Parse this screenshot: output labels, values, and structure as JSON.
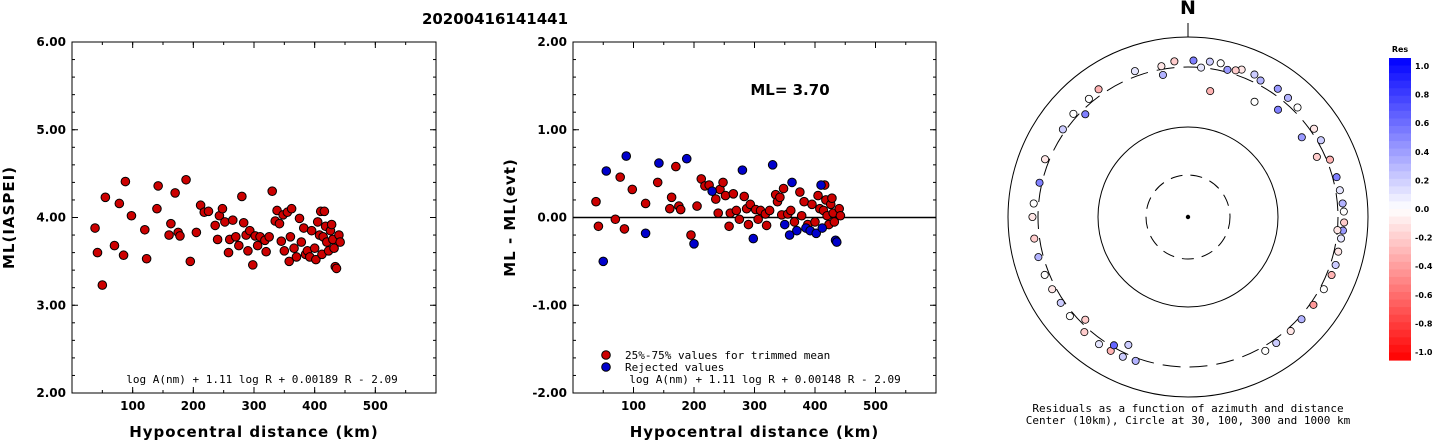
{
  "title": "20200416141441",
  "colors": {
    "accepted": "#cc0000",
    "rejected": "#0000cc",
    "positive_residual": "#0000ff",
    "negative_residual": "#ff0000"
  },
  "chart_data": [
    {
      "type": "scatter",
      "id": "left",
      "xlabel": "Hypocentral distance (km)",
      "ylabel": "ML(IASPEI)",
      "xlim": [
        0,
        600
      ],
      "ylim": [
        2.0,
        6.0
      ],
      "xticks": [
        100,
        200,
        300,
        400,
        500
      ],
      "yticks": [
        "2.00",
        "3.00",
        "4.00",
        "5.00",
        "6.00"
      ],
      "formula": "log A(nm) + 1.11 log R + 0.00189 R - 2.09",
      "series": [
        {
          "points": [
            [
              38,
              3.88
            ],
            [
              42,
              3.6
            ],
            [
              50,
              3.23
            ],
            [
              55,
              4.23
            ],
            [
              70,
              3.68
            ],
            [
              78,
              4.16
            ],
            [
              85,
              3.57
            ],
            [
              88,
              4.41
            ],
            [
              98,
              4.02
            ],
            [
              120,
              3.86
            ],
            [
              123,
              3.53
            ],
            [
              140,
              4.1
            ],
            [
              142,
              4.36
            ],
            [
              160,
              3.8
            ],
            [
              163,
              3.93
            ],
            [
              170,
              4.28
            ],
            [
              175,
              3.83
            ],
            [
              178,
              3.79
            ],
            [
              188,
              4.43
            ],
            [
              195,
              3.5
            ],
            [
              205,
              3.83
            ],
            [
              212,
              4.14
            ],
            [
              218,
              4.06
            ],
            [
              225,
              4.07
            ],
            [
              236,
              3.91
            ],
            [
              240,
              3.75
            ],
            [
              243,
              4.02
            ],
            [
              248,
              4.1
            ],
            [
              252,
              3.95
            ],
            [
              258,
              3.6
            ],
            [
              260,
              3.75
            ],
            [
              265,
              3.97
            ],
            [
              270,
              3.78
            ],
            [
              275,
              3.68
            ],
            [
              280,
              4.24
            ],
            [
              283,
              3.94
            ],
            [
              287,
              3.8
            ],
            [
              290,
              3.62
            ],
            [
              293,
              3.85
            ],
            [
              298,
              3.46
            ],
            [
              302,
              3.79
            ],
            [
              306,
              3.68
            ],
            [
              310,
              3.78
            ],
            [
              318,
              3.74
            ],
            [
              320,
              3.61
            ],
            [
              325,
              3.78
            ],
            [
              330,
              4.3
            ],
            [
              335,
              3.96
            ],
            [
              338,
              4.08
            ],
            [
              342,
              3.93
            ],
            [
              345,
              3.73
            ],
            [
              348,
              4.03
            ],
            [
              350,
              3.62
            ],
            [
              355,
              4.06
            ],
            [
              358,
              3.5
            ],
            [
              360,
              3.78
            ],
            [
              362,
              4.1
            ],
            [
              366,
              3.65
            ],
            [
              370,
              3.55
            ],
            [
              375,
              3.99
            ],
            [
              378,
              3.72
            ],
            [
              382,
              3.88
            ],
            [
              385,
              3.58
            ],
            [
              388,
              3.62
            ],
            [
              392,
              3.55
            ],
            [
              395,
              3.85
            ],
            [
              400,
              3.65
            ],
            [
              402,
              3.52
            ],
            [
              405,
              3.95
            ],
            [
              408,
              3.8
            ],
            [
              410,
              4.07
            ],
            [
              412,
              3.58
            ],
            [
              414,
              3.78
            ],
            [
              416,
              4.07
            ],
            [
              418,
              3.9
            ],
            [
              420,
              3.72
            ],
            [
              423,
              3.62
            ],
            [
              426,
              3.85
            ],
            [
              428,
              3.92
            ],
            [
              430,
              3.75
            ],
            [
              432,
              3.65
            ],
            [
              434,
              3.44
            ],
            [
              436,
              3.42
            ],
            [
              440,
              3.8
            ],
            [
              442,
              3.72
            ]
          ]
        }
      ]
    },
    {
      "type": "scatter",
      "id": "middle",
      "xlabel": "Hypocentral distance (km)",
      "ylabel": "ML - ML(evt)",
      "xlim": [
        0,
        600
      ],
      "ylim": [
        -2.0,
        2.0
      ],
      "xticks": [
        100,
        200,
        300,
        400,
        500
      ],
      "yticks": [
        "-2.00",
        "-1.00",
        "0.00",
        "1.00",
        "2.00"
      ],
      "annotation": "ML= 3.70",
      "formula": "log A(nm) + 1.11 log R + 0.00148 R - 2.09",
      "legend": [
        "25%-75% values for trimmed mean",
        "Rejected values"
      ],
      "series": [
        {
          "name": "25%-75% values for trimmed mean",
          "points": [
            [
              38,
              0.18
            ],
            [
              42,
              -0.1
            ],
            [
              70,
              -0.02
            ],
            [
              78,
              0.46
            ],
            [
              85,
              -0.13
            ],
            [
              98,
              0.32
            ],
            [
              120,
              0.16
            ],
            [
              140,
              0.4
            ],
            [
              160,
              0.1
            ],
            [
              163,
              0.23
            ],
            [
              170,
              0.58
            ],
            [
              175,
              0.13
            ],
            [
              178,
              0.09
            ],
            [
              195,
              -0.2
            ],
            [
              205,
              0.13
            ],
            [
              212,
              0.44
            ],
            [
              218,
              0.36
            ],
            [
              225,
              0.37
            ],
            [
              236,
              0.21
            ],
            [
              240,
              0.05
            ],
            [
              243,
              0.32
            ],
            [
              248,
              0.4
            ],
            [
              252,
              0.25
            ],
            [
              258,
              -0.1
            ],
            [
              260,
              0.05
            ],
            [
              265,
              0.27
            ],
            [
              270,
              0.08
            ],
            [
              275,
              -0.02
            ],
            [
              283,
              0.24
            ],
            [
              287,
              0.1
            ],
            [
              290,
              -0.08
            ],
            [
              293,
              0.15
            ],
            [
              302,
              0.09
            ],
            [
              306,
              -0.02
            ],
            [
              310,
              0.08
            ],
            [
              318,
              0.04
            ],
            [
              320,
              -0.09
            ],
            [
              325,
              0.08
            ],
            [
              335,
              0.26
            ],
            [
              338,
              0.18
            ],
            [
              342,
              0.23
            ],
            [
              345,
              0.03
            ],
            [
              348,
              0.33
            ],
            [
              355,
              0.04
            ],
            [
              360,
              0.08
            ],
            [
              366,
              -0.05
            ],
            [
              375,
              0.29
            ],
            [
              378,
              0.02
            ],
            [
              382,
              0.18
            ],
            [
              388,
              -0.08
            ],
            [
              395,
              0.15
            ],
            [
              400,
              -0.05
            ],
            [
              405,
              0.25
            ],
            [
              408,
              0.1
            ],
            [
              414,
              0.08
            ],
            [
              416,
              0.37
            ],
            [
              418,
              0.2
            ],
            [
              420,
              0.02
            ],
            [
              423,
              -0.08
            ],
            [
              426,
              0.15
            ],
            [
              428,
              0.22
            ],
            [
              430,
              0.05
            ],
            [
              432,
              -0.05
            ],
            [
              440,
              0.1
            ],
            [
              442,
              0.02
            ]
          ]
        },
        {
          "name": "Rejected values",
          "points": [
            [
              50,
              -0.5
            ],
            [
              55,
              0.53
            ],
            [
              88,
              0.7
            ],
            [
              142,
              0.62
            ],
            [
              188,
              0.67
            ],
            [
              280,
              0.54
            ],
            [
              298,
              -0.24
            ],
            [
              330,
              0.6
            ],
            [
              350,
              -0.08
            ],
            [
              358,
              -0.2
            ],
            [
              362,
              0.4
            ],
            [
              370,
              -0.15
            ],
            [
              385,
              -0.12
            ],
            [
              392,
              -0.15
            ],
            [
              402,
              -0.18
            ],
            [
              410,
              0.37
            ],
            [
              412,
              -0.12
            ],
            [
              434,
              -0.26
            ],
            [
              436,
              -0.28
            ],
            [
              200,
              -0.3
            ],
            [
              120,
              -0.18
            ],
            [
              230,
              0.3
            ]
          ]
        }
      ]
    },
    {
      "type": "scatter",
      "id": "azimuth",
      "subtype": "polar",
      "north_label": "N",
      "caption": [
        "Residuals as a function of azimuth and distance",
        "Center (10km), Circle at 30, 100, 300 and 1000 km"
      ],
      "rings_km": [
        30,
        100,
        300,
        1000
      ],
      "colorbar_title": "Res",
      "colorbar_ticks": [
        "1.0",
        "0.8",
        "0.6",
        "0.4",
        "0.2",
        "0.0",
        "-0.2",
        "-0.4",
        "-0.6",
        "-0.8",
        "-1.0"
      ],
      "stations": [
        [
          5,
          300,
          0.1
        ],
        [
          15,
          330,
          0.4
        ],
        [
          28,
          360,
          0.3
        ],
        [
          350,
          340,
          -0.1
        ],
        [
          340,
          370,
          0.1
        ],
        [
          325,
          380,
          -0.3
        ],
        [
          312,
          355,
          0.0
        ],
        [
          355,
          385,
          -0.2
        ],
        [
          2,
          390,
          0.5
        ],
        [
          8,
          395,
          0.2
        ],
        [
          12,
          400,
          0.0
        ],
        [
          20,
          395,
          -0.1
        ],
        [
          25,
          400,
          0.2
        ],
        [
          35,
          390,
          0.4
        ],
        [
          40,
          375,
          0.3
        ],
        [
          45,
          365,
          0.0
        ],
        [
          55,
          350,
          -0.1
        ],
        [
          60,
          345,
          0.2
        ],
        [
          68,
          340,
          -0.3
        ],
        [
          75,
          350,
          0.5
        ],
        [
          80,
          355,
          0.1
        ],
        [
          85,
          370,
          0.3
        ],
        [
          88,
          380,
          0.0
        ],
        [
          92,
          385,
          -0.2
        ],
        [
          95,
          375,
          0.4
        ],
        [
          98,
          360,
          0.1
        ],
        [
          103,
          355,
          -0.1
        ],
        [
          108,
          370,
          0.2
        ],
        [
          112,
          365,
          -0.3
        ],
        [
          118,
          350,
          0.0
        ],
        [
          125,
          340,
          -0.4
        ],
        [
          132,
          335,
          0.3
        ],
        [
          138,
          345,
          -0.1
        ],
        [
          145,
          350,
          0.2
        ],
        [
          150,
          360,
          0.0
        ],
        [
          200,
          340,
          0.3
        ],
        [
          205,
          355,
          0.2
        ],
        [
          210,
          360,
          -0.3
        ],
        [
          215,
          370,
          0.1
        ],
        [
          222,
          365,
          -0.2
        ],
        [
          230,
          355,
          0.0
        ],
        [
          236,
          345,
          0.2
        ],
        [
          242,
          350,
          -0.1
        ],
        [
          248,
          360,
          0.0
        ],
        [
          255,
          365,
          0.3
        ],
        [
          262,
          370,
          -0.2
        ],
        [
          270,
          375,
          -0.1
        ],
        [
          275,
          365,
          0.0
        ],
        [
          283,
          330,
          0.5
        ],
        [
          292,
          355,
          -0.1
        ],
        [
          305,
          335,
          0.2
        ],
        [
          320,
          355,
          0.0
        ],
        [
          350,
          270,
          0.3
        ],
        [
          10,
          200,
          -0.3
        ],
        [
          30,
          220,
          0.0
        ],
        [
          40,
          250,
          0.5
        ],
        [
          55,
          245,
          0.4
        ],
        [
          65,
          260,
          -0.2
        ],
        [
          205,
          255,
          0.2
        ],
        [
          210,
          290,
          0.6
        ],
        [
          225,
          275,
          -0.2
        ],
        [
          315,
          275,
          0.5
        ],
        [
          18,
          355,
          -0.2
        ],
        [
          95,
          300,
          -0.1
        ]
      ]
    }
  ]
}
